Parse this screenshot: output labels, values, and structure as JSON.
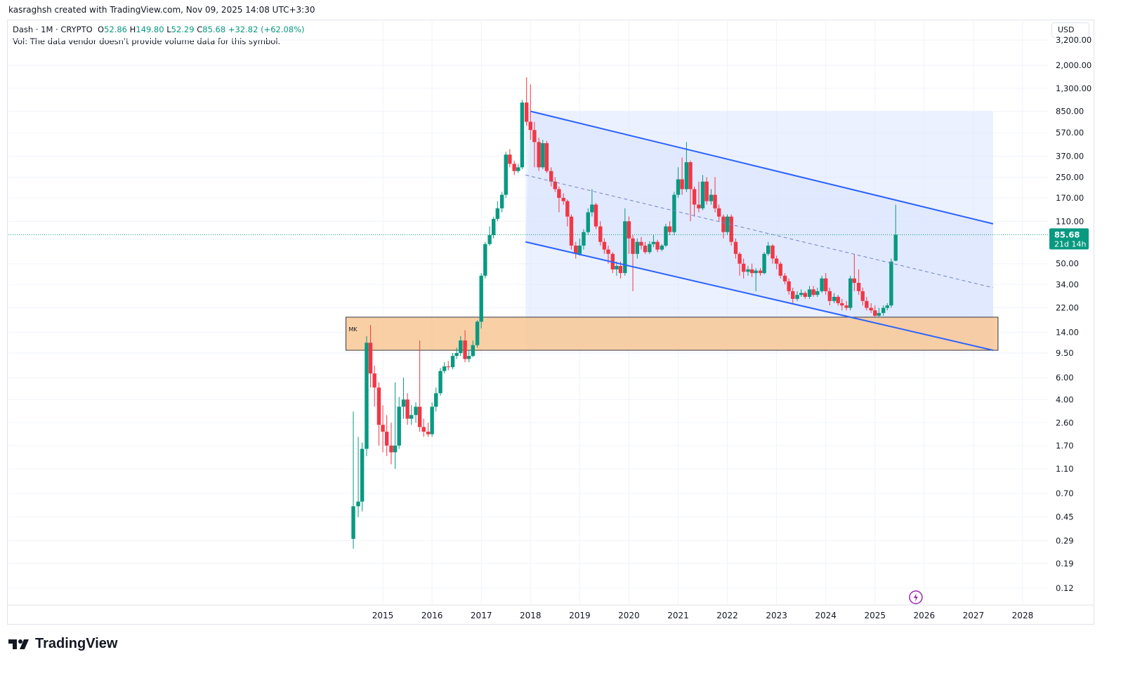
{
  "header": {
    "credit": "kasraghsh created with TradingView.com, Nov 09, 2025 14:08 UTC+3:30"
  },
  "legend": {
    "symbol": "Dash · 1M · CRYPTO",
    "open_label": "O",
    "open": "52.86",
    "high_label": "H",
    "high": "149.80",
    "low_label": "L",
    "low": "52.29",
    "close_label": "C",
    "close": "85.68",
    "change": "+32.82 (+62.08%)",
    "volume_note": "Vol: The data vendor doesn't provide volume data for this symbol."
  },
  "currency_button": "USD",
  "brand": "TradingView",
  "colors": {
    "up": "#089981",
    "down": "#f23645",
    "channel": "#2962ff",
    "channel_fill": "#dbe5ff",
    "zone_fill": "#f9c896"
  },
  "chart_data": {
    "type": "candlestick",
    "scale": "log",
    "price_labels": [
      "0.12",
      "0.19",
      "0.29",
      "0.45",
      "0.70",
      "1.10",
      "1.70",
      "2.60",
      "4.00",
      "6.00",
      "9.50",
      "14.00",
      "22.00",
      "34.00",
      "50.00",
      "85.68",
      "110.00",
      "170.00",
      "250.00",
      "370.00",
      "570.00",
      "850.00",
      "1,300.00",
      "2,000.00",
      "3,200.00"
    ],
    "price_values": [
      0.12,
      0.19,
      0.29,
      0.45,
      0.7,
      1.1,
      1.7,
      2.6,
      4.0,
      6.0,
      9.5,
      14.0,
      22.0,
      34.0,
      50.0,
      85.68,
      110.0,
      170.0,
      250.0,
      370.0,
      570.0,
      850.0,
      1300.0,
      2000.0,
      3200.0
    ],
    "x_labels": [
      "2015",
      "2016",
      "2017",
      "2018",
      "2019",
      "2020",
      "2021",
      "2022",
      "2023",
      "2024",
      "2025",
      "2026",
      "2027",
      "2028"
    ],
    "x_years": [
      2015,
      2016,
      2017,
      2018,
      2019,
      2020,
      2021,
      2022,
      2023,
      2024,
      2025,
      2026,
      2027,
      2028
    ],
    "last_price": {
      "value": 85.68,
      "label": "85.68",
      "countdown": "21d 14h"
    },
    "support_zone": {
      "label": "MK",
      "low": 10,
      "high": 18.5,
      "from": 2014.25,
      "to": 2027.5
    },
    "channel": {
      "upper": [
        [
          2018.0,
          850
        ],
        [
          2027.4,
          105
        ]
      ],
      "lower": [
        [
          2017.9,
          75
        ],
        [
          2027.4,
          10
        ]
      ],
      "mid": [
        [
          2017.9,
          260
        ],
        [
          2027.4,
          32
        ]
      ]
    },
    "candles": [
      [
        2014.4,
        0.3,
        0.55,
        0.25,
        3.2
      ],
      [
        2014.5,
        0.55,
        0.6,
        0.45,
        2.0
      ],
      [
        2014.58,
        0.6,
        1.6,
        0.5,
        1.8
      ],
      [
        2014.67,
        1.6,
        11.5,
        1.4,
        13.0
      ],
      [
        2014.75,
        11.5,
        6.5,
        5.0,
        16.0
      ],
      [
        2014.83,
        6.5,
        5.0,
        3.5,
        7.5
      ],
      [
        2014.92,
        5.0,
        2.5,
        1.7,
        5.5
      ],
      [
        2015.0,
        2.5,
        2.2,
        1.5,
        3.6
      ],
      [
        2015.08,
        2.2,
        1.7,
        1.4,
        3.0
      ],
      [
        2015.17,
        1.7,
        1.5,
        1.2,
        2.6
      ],
      [
        2015.25,
        1.5,
        1.7,
        1.1,
        5.5
      ],
      [
        2015.33,
        1.7,
        3.5,
        1.6,
        4.2
      ],
      [
        2015.42,
        3.5,
        4.0,
        2.8,
        6.0
      ],
      [
        2015.5,
        4.0,
        2.8,
        2.5,
        4.5
      ],
      [
        2015.58,
        2.8,
        3.0,
        2.5,
        3.6
      ],
      [
        2015.67,
        3.0,
        3.5,
        2.6,
        3.8
      ],
      [
        2015.75,
        3.5,
        2.4,
        2.2,
        12.0
      ],
      [
        2015.83,
        2.4,
        2.2,
        2.0,
        2.8
      ],
      [
        2015.92,
        2.2,
        2.1,
        2.0,
        2.6
      ],
      [
        2016.0,
        2.1,
        3.5,
        2.0,
        3.8
      ],
      [
        2016.08,
        3.5,
        4.5,
        3.2,
        5.0
      ],
      [
        2016.17,
        4.5,
        6.8,
        4.3,
        7.2
      ],
      [
        2016.25,
        6.8,
        7.4,
        6.5,
        8.0
      ],
      [
        2016.33,
        7.4,
        7.3,
        6.9,
        8.2
      ],
      [
        2016.42,
        7.3,
        9.0,
        7.0,
        9.5
      ],
      [
        2016.5,
        9.0,
        9.5,
        8.5,
        10.5
      ],
      [
        2016.58,
        9.5,
        12.0,
        9.0,
        13.0
      ],
      [
        2016.67,
        12.0,
        8.5,
        8.0,
        14.5
      ],
      [
        2016.75,
        8.5,
        9.0,
        8.0,
        10.0
      ],
      [
        2016.83,
        9.0,
        11.0,
        8.8,
        12.0
      ],
      [
        2016.92,
        11.0,
        17.0,
        10.5,
        17.5
      ],
      [
        2017.0,
        17.0,
        40.0,
        15.0,
        42.0
      ],
      [
        2017.08,
        40.0,
        72.0,
        38.0,
        75.0
      ],
      [
        2017.17,
        72.0,
        85.0,
        70.0,
        100.0
      ],
      [
        2017.25,
        85.0,
        115.0,
        80.0,
        120.0
      ],
      [
        2017.33,
        115.0,
        140.0,
        110.0,
        160.0
      ],
      [
        2017.42,
        140.0,
        180.0,
        130.0,
        190.0
      ],
      [
        2017.5,
        180.0,
        380.0,
        170.0,
        400.0
      ],
      [
        2017.58,
        380.0,
        320.0,
        300.0,
        420.0
      ],
      [
        2017.67,
        320.0,
        280.0,
        260.0,
        340.0
      ],
      [
        2017.75,
        280.0,
        300.0,
        270.0,
        320.0
      ],
      [
        2017.83,
        300.0,
        1000.0,
        290.0,
        1050.0
      ],
      [
        2017.92,
        1000.0,
        700.0,
        650.0,
        1600.0
      ],
      [
        2018.0,
        700.0,
        600.0,
        500.0,
        1400.0
      ],
      [
        2018.08,
        600.0,
        480.0,
        300.0,
        700.0
      ],
      [
        2018.17,
        480.0,
        300.0,
        280.0,
        520.0
      ],
      [
        2018.25,
        300.0,
        470.0,
        290.0,
        500.0
      ],
      [
        2018.33,
        470.0,
        280.0,
        270.0,
        490.0
      ],
      [
        2018.42,
        280.0,
        230.0,
        210.0,
        300.0
      ],
      [
        2018.5,
        230.0,
        200.0,
        190.0,
        250.0
      ],
      [
        2018.58,
        200.0,
        170.0,
        130.0,
        210.0
      ],
      [
        2018.67,
        170.0,
        160.0,
        150.0,
        185.0
      ],
      [
        2018.75,
        160.0,
        120.0,
        100.0,
        165.0
      ],
      [
        2018.83,
        120.0,
        70.0,
        65.0,
        125.0
      ],
      [
        2018.92,
        70.0,
        60.0,
        55.0,
        75.0
      ],
      [
        2019.0,
        60.0,
        70.0,
        58.0,
        80.0
      ],
      [
        2019.08,
        70.0,
        90.0,
        65.0,
        95.0
      ],
      [
        2019.17,
        90.0,
        130.0,
        85.0,
        140.0
      ],
      [
        2019.25,
        130.0,
        150.0,
        120.0,
        200.0
      ],
      [
        2019.33,
        150.0,
        100.0,
        95.0,
        155.0
      ],
      [
        2019.42,
        100.0,
        75.0,
        70.0,
        110.0
      ],
      [
        2019.5,
        75.0,
        65.0,
        60.0,
        80.0
      ],
      [
        2019.58,
        65.0,
        60.0,
        50.0,
        70.0
      ],
      [
        2019.67,
        60.0,
        45.0,
        42.0,
        62.0
      ],
      [
        2019.75,
        45.0,
        48.0,
        40.0,
        52.0
      ],
      [
        2019.83,
        48.0,
        42.0,
        38.0,
        52.0
      ],
      [
        2019.92,
        42.0,
        110.0,
        40.0,
        140.0
      ],
      [
        2020.0,
        110.0,
        80.0,
        60.0,
        120.0
      ],
      [
        2020.08,
        80.0,
        60.0,
        30.0,
        85.0
      ],
      [
        2020.17,
        60.0,
        75.0,
        55.0,
        80.0
      ],
      [
        2020.25,
        75.0,
        70.0,
        65.0,
        82.0
      ],
      [
        2020.33,
        70.0,
        62.0,
        60.0,
        75.0
      ],
      [
        2020.42,
        62.0,
        72.0,
        60.0,
        76.0
      ],
      [
        2020.5,
        72.0,
        75.0,
        68.0,
        85.0
      ],
      [
        2020.58,
        75.0,
        65.0,
        62.0,
        78.0
      ],
      [
        2020.67,
        65.0,
        70.0,
        63.0,
        72.0
      ],
      [
        2020.75,
        70.0,
        100.0,
        68.0,
        105.0
      ],
      [
        2020.83,
        100.0,
        90.0,
        85.0,
        110.0
      ],
      [
        2020.92,
        90.0,
        180.0,
        85.0,
        190.0
      ],
      [
        2021.0,
        180.0,
        240.0,
        170.0,
        300.0
      ],
      [
        2021.08,
        240.0,
        200.0,
        180.0,
        360.0
      ],
      [
        2021.17,
        200.0,
        330.0,
        190.0,
        480.0
      ],
      [
        2021.25,
        330.0,
        200.0,
        110.0,
        340.0
      ],
      [
        2021.33,
        200.0,
        150.0,
        120.0,
        210.0
      ],
      [
        2021.42,
        150.0,
        140.0,
        130.0,
        230.0
      ],
      [
        2021.5,
        140.0,
        230.0,
        135.0,
        260.0
      ],
      [
        2021.58,
        230.0,
        160.0,
        150.0,
        250.0
      ],
      [
        2021.67,
        160.0,
        180.0,
        150.0,
        200.0
      ],
      [
        2021.75,
        180.0,
        140.0,
        130.0,
        250.0
      ],
      [
        2021.83,
        140.0,
        120.0,
        110.0,
        150.0
      ],
      [
        2021.92,
        120.0,
        90.0,
        80.0,
        125.0
      ],
      [
        2022.0,
        90.0,
        120.0,
        85.0,
        125.0
      ],
      [
        2022.08,
        120.0,
        75.0,
        70.0,
        125.0
      ],
      [
        2022.17,
        75.0,
        60.0,
        55.0,
        80.0
      ],
      [
        2022.25,
        60.0,
        50.0,
        40.0,
        62.0
      ],
      [
        2022.33,
        50.0,
        43.0,
        38.0,
        55.0
      ],
      [
        2022.42,
        43.0,
        45.0,
        40.0,
        48.0
      ],
      [
        2022.5,
        45.0,
        42.0,
        39.0,
        50.0
      ],
      [
        2022.58,
        42.0,
        44.0,
        30.0,
        46.0
      ],
      [
        2022.67,
        44.0,
        42.0,
        40.0,
        46.0
      ],
      [
        2022.75,
        42.0,
        60.0,
        41.0,
        62.0
      ],
      [
        2022.83,
        60.0,
        70.0,
        58.0,
        75.0
      ],
      [
        2022.92,
        70.0,
        55.0,
        50.0,
        72.0
      ],
      [
        2023.0,
        55.0,
        50.0,
        45.0,
        58.0
      ],
      [
        2023.08,
        50.0,
        40.0,
        38.0,
        52.0
      ],
      [
        2023.17,
        40.0,
        36.0,
        34.0,
        42.0
      ],
      [
        2023.25,
        36.0,
        30.0,
        28.0,
        38.0
      ],
      [
        2023.33,
        30.0,
        26.0,
        24.0,
        32.0
      ],
      [
        2023.42,
        26.0,
        28.0,
        25.0,
        30.0
      ],
      [
        2023.5,
        28.0,
        29.0,
        27.0,
        31.0
      ],
      [
        2023.58,
        29.0,
        27.0,
        26.0,
        30.0
      ],
      [
        2023.67,
        27.0,
        31.0,
        26.0,
        33.0
      ],
      [
        2023.75,
        31.0,
        28.0,
        27.0,
        33.0
      ],
      [
        2023.83,
        28.0,
        30.0,
        27.0,
        32.0
      ],
      [
        2023.92,
        30.0,
        38.0,
        29.0,
        40.0
      ],
      [
        2024.0,
        38.0,
        30.0,
        28.0,
        42.0
      ],
      [
        2024.08,
        30.0,
        25.0,
        23.0,
        32.0
      ],
      [
        2024.17,
        25.0,
        27.0,
        24.0,
        29.0
      ],
      [
        2024.25,
        27.0,
        24.0,
        23.0,
        28.0
      ],
      [
        2024.33,
        24.0,
        23.0,
        21.0,
        26.0
      ],
      [
        2024.42,
        23.0,
        22.0,
        21.0,
        25.0
      ],
      [
        2024.5,
        22.0,
        38.0,
        21.0,
        40.0
      ],
      [
        2024.58,
        38.0,
        35.0,
        30.0,
        60.0
      ],
      [
        2024.67,
        35.0,
        30.0,
        28.0,
        45.0
      ],
      [
        2024.75,
        30.0,
        25.0,
        23.0,
        32.0
      ],
      [
        2024.83,
        25.0,
        22.0,
        21.0,
        27.0
      ],
      [
        2024.92,
        22.0,
        21.0,
        20.0,
        24.0
      ],
      [
        2025.0,
        21.0,
        19.0,
        18.5,
        23.0
      ],
      [
        2025.08,
        19.0,
        20.0,
        18.5,
        22.0
      ],
      [
        2025.17,
        20.0,
        22.0,
        19.0,
        23.0
      ],
      [
        2025.25,
        22.0,
        23.0,
        21.0,
        24.0
      ],
      [
        2025.33,
        23.0,
        52.0,
        22.0,
        55.0
      ],
      [
        2025.42,
        52.86,
        85.68,
        52.29,
        149.8
      ]
    ]
  }
}
